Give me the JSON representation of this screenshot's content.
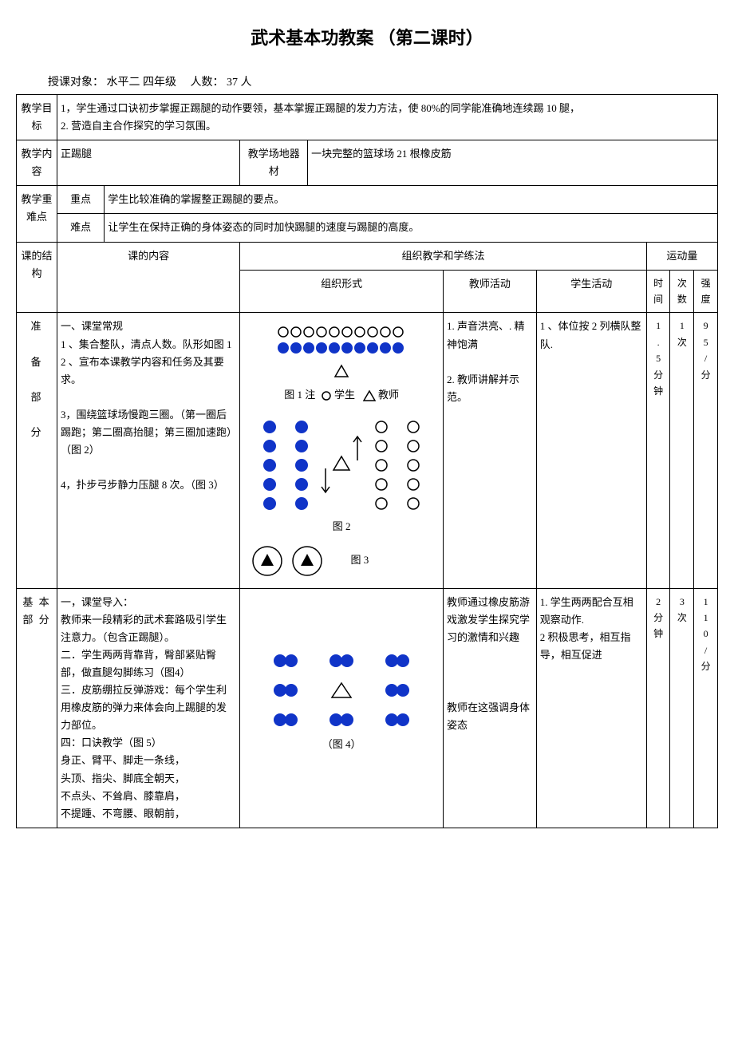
{
  "title": "武术基本功教案 （第二课时）",
  "meta": {
    "audience_label": "授课对象：",
    "audience_value": "水平二  四年级",
    "count_label": "人数：",
    "count_value": "37 人"
  },
  "rows": {
    "goal_label": "教学目标",
    "goal_text": "1，学生通过口诀初步掌握正踢腿的动作要领，基本掌握正踢腿的发力方法，使 80%的同学能准确地连续踢 10 腿，\n2. 营造自主合作探究的学习氛围。",
    "content_label": "教学内容",
    "content_value": "正踢腿",
    "venue_label": "教学场地器材",
    "venue_value": "一块完整的篮球场   21 根橡皮筋",
    "difficulty_label": "教学重难点",
    "key_label": "重点",
    "key_value": "学生比较准确的掌握整正踢腿的要点。",
    "hard_label": "难点",
    "hard_value": "让学生在保持正确的身体姿态的同时加快踢腿的速度与踢腿的高度。"
  },
  "header": {
    "structure": "课的结构",
    "content": "课的内容",
    "org_methods": "组织教学和学练法",
    "org_form": "组织形式",
    "teacher": "教师活动",
    "student": "学生活动",
    "load": "运动量",
    "time": "时间",
    "count": "次数",
    "intensity": "强度"
  },
  "prep": {
    "label": "准\n\n备\n\n部\n\n分",
    "content": "一、课堂常规\n1 、集合整队，清点人数。队形如图 1\n2 、宣布本课教学内容和任务及其要求。\n\n3，围绕篮球场慢跑三圈。（第一圈后踢跑；第二圈高抬腿；第三圈加速跑）（图 2）\n\n4，扑步弓步静力压腿 8 次。（图 3）",
    "legend_student": "学生",
    "legend_teacher": "教师",
    "fig1_label": "图 1 注",
    "fig2_label": "图 2",
    "fig3_label": "图 3",
    "teacher_act": "1. 声音洪亮、. 精神饱满\n\n2. 教师讲解并示范。",
    "student_act": "1 、体位按 2 列横队整队.",
    "time": "1\n.\n5\n分\n钟",
    "count": "1\n次",
    "intensity": "9\n5\n/\n分"
  },
  "basic": {
    "label": "基 本\n部 分",
    "content": "一，课堂导入：\n教师来一段精彩的武术套路吸引学生注意力。（包含正踢腿）。\n二．学生两两背靠背，臀部紧贴臀部，做直腿勾脚练习（图4）\n三．皮筋绷拉反弹游戏：每个学生利用橡皮筋的弹力来体会向上踢腿的发力部位。\n四：口诀教学（图 5）\n身正、臂平、脚走一条线，\n头顶、指尖、脚底全朝天，\n不点头、不耸肩、膝靠肩，\n不提踵、不弯腰、眼朝前，",
    "fig4_label": "（图 4）",
    "teacher_act": "教师通过橡皮筋游戏激发学生探究学习的激情和兴趣\n\n\n\n教师在这强调身体姿态",
    "student_act": "1. 学生两两配合互相观察动作.\n2 积极思考，相互指导，相互促进",
    "time": "2\n分\n钟",
    "count": "3\n次",
    "intensity": "1\n1\n0\n/\n分"
  },
  "colors": {
    "solid": "#1034c8",
    "hollow_stroke": "#000000",
    "triangle_stroke": "#000000",
    "bg": "#ffffff"
  }
}
